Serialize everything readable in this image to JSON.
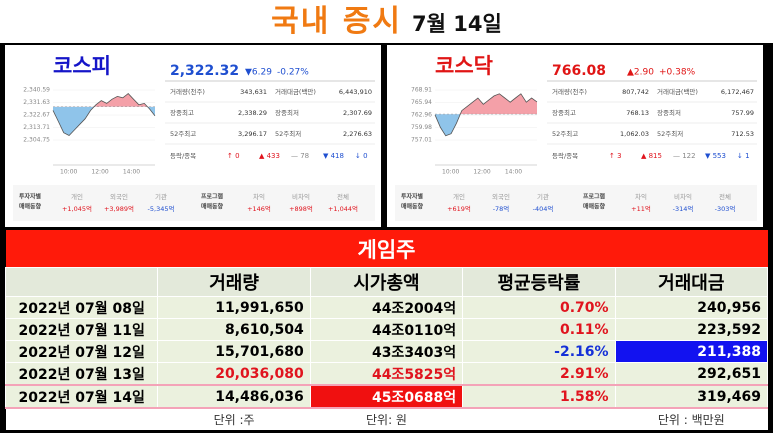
{
  "title": "국내 증시",
  "date": "7월 14일",
  "markets": [
    {
      "name": "코스피",
      "name_color": "#1515c8",
      "color": "#1f4fd0",
      "price": "2,322.32",
      "change": "▼6.29",
      "rate": "-0.27%",
      "stats": [
        {
          "label": "거래량(천주)",
          "value": "343,631"
        },
        {
          "label": "거래대금(백만)",
          "value": "6,443,910"
        },
        {
          "label": "장중최고",
          "value": "2,338.29"
        },
        {
          "label": "장중최저",
          "value": "2,307.69"
        },
        {
          "label": "52주최고",
          "value": "3,296.17"
        },
        {
          "label": "52주최저",
          "value": "2,276.63"
        }
      ],
      "breadth_label": "등락/종목",
      "breadth": [
        "↑ 0",
        "▲ 433",
        "— 78",
        "▼ 418",
        "↓ 0"
      ],
      "investor_title": [
        "투자자별",
        "매매동향"
      ],
      "investors": [
        {
          "label": "개인",
          "value": "+1,045억"
        },
        {
          "label": "외국인",
          "value": "+3,989억"
        },
        {
          "label": "기관",
          "value": "-5,345억"
        }
      ],
      "program_title": [
        "프로그램",
        "매매동향"
      ],
      "programs": [
        {
          "label": "차익",
          "value": "+146억"
        },
        {
          "label": "비차익",
          "value": "+898억"
        },
        {
          "label": "전체",
          "value": "+1,044억"
        }
      ],
      "chart": {
        "type": "line",
        "ylim": [
          2304.75,
          2340.59
        ],
        "yticks": [
          {
            "value": 2340.59,
            "label": "2,340.59"
          },
          {
            "value": 2331.63,
            "label": "2,331.63"
          },
          {
            "value": 2322.67,
            "label": "2,322.67"
          },
          {
            "value": 2313.71,
            "label": "2,313.71"
          },
          {
            "value": 2304.75,
            "label": "2,304.75"
          }
        ],
        "base": 2328.61,
        "xlabels": [
          "10:00",
          "12:00",
          "14:00"
        ],
        "values": [
          2326,
          2318,
          2310,
          2308,
          2312,
          2316,
          2320,
          2326,
          2330,
          2333,
          2331,
          2334,
          2336,
          2335,
          2338,
          2334,
          2330,
          2331,
          2327,
          2322
        ]
      }
    },
    {
      "name": "코스닥",
      "name_color": "#e01515",
      "color": "#e01515",
      "price": "766.08",
      "change": "▲2.90",
      "rate": "+0.38%",
      "stats": [
        {
          "label": "거래량(천주)",
          "value": "807,742"
        },
        {
          "label": "거래대금(백만)",
          "value": "6,172,467"
        },
        {
          "label": "장중최고",
          "value": "768.13"
        },
        {
          "label": "장중최저",
          "value": "757.99"
        },
        {
          "label": "52주최고",
          "value": "1,062.03"
        },
        {
          "label": "52주최저",
          "value": "712.53"
        }
      ],
      "breadth_label": "등락/종목",
      "breadth": [
        "↑ 3",
        "▲ 815",
        "— 122",
        "▼ 553",
        "↓ 1"
      ],
      "investor_title": [
        "투자자별",
        "매매동향"
      ],
      "investors": [
        {
          "label": "개인",
          "value": "+619억"
        },
        {
          "label": "외국인",
          "value": "-78억"
        },
        {
          "label": "기관",
          "value": "-404억"
        }
      ],
      "program_title": [
        "프로그램",
        "매매동향"
      ],
      "programs": [
        {
          "label": "차익",
          "value": "+11억"
        },
        {
          "label": "비차익",
          "value": "-314억"
        },
        {
          "label": "전체",
          "value": "-303억"
        }
      ],
      "chart": {
        "type": "line",
        "ylim": [
          757.01,
          768.91
        ],
        "yticks": [
          768.91,
          765.94,
          762.96,
          759.98,
          757.01
        ],
        "base": 763.18,
        "xlabels": [
          "10:00",
          "12:00",
          "14:00"
        ],
        "values": [
          763,
          760,
          758,
          758.5,
          761,
          764,
          765,
          766,
          767,
          765.5,
          766.5,
          767.5,
          768,
          767,
          766,
          767,
          768,
          766,
          767,
          766.08
        ]
      }
    }
  ],
  "table": {
    "title": "게임주",
    "columns": [
      "거래량",
      "시가총액",
      "평균등락률",
      "거래대금"
    ],
    "rows": [
      [
        "2022년 07월 08일",
        "11,991,650",
        "44조2004억",
        "0.70%",
        "240,956"
      ],
      [
        "2022년 07월 11일",
        "8,610,504",
        "44조0110억",
        "0.11%",
        "223,592"
      ],
      [
        "2022년 07월 12일",
        "15,701,680",
        "43조3403억",
        "-2.16%",
        "211,388"
      ],
      [
        "2022년 07월 13일",
        "20,036,080",
        "44조5825억",
        "2.91%",
        "292,651"
      ],
      [
        "2022년 07월 14일",
        "14,486,036",
        "45조0688억",
        "1.58%",
        "319,469"
      ]
    ],
    "cell_styles": [
      {
        "row": 0,
        "col": 3,
        "style": "red-text"
      },
      {
        "row": 1,
        "col": 3,
        "style": "red-text"
      },
      {
        "row": 2,
        "col": 3,
        "style": "blue-text"
      },
      {
        "row": 2,
        "col": 4,
        "style": "blue-fill"
      },
      {
        "row": 3,
        "col": 1,
        "style": "red-text"
      },
      {
        "row": 3,
        "col": 2,
        "style": "red-text"
      },
      {
        "row": 3,
        "col": 3,
        "style": "red-text"
      },
      {
        "row": 4,
        "col": 2,
        "style": "red-fill"
      },
      {
        "row": 4,
        "col": 3,
        "style": "red-text"
      }
    ],
    "selected_row": 4,
    "units": [
      "단위 :주",
      "단위: 원",
      "단위 : 백만원"
    ]
  }
}
